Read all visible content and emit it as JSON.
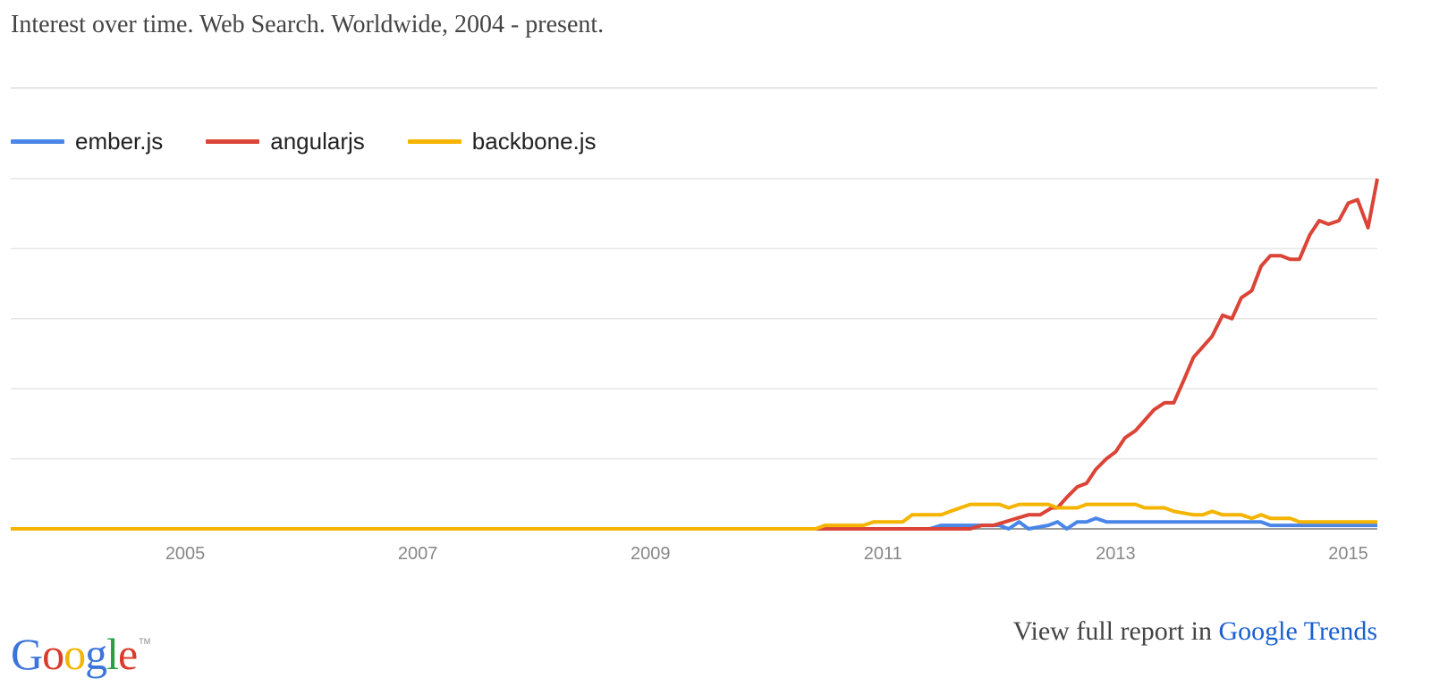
{
  "header": {
    "title": "Interest over time. Web Search. Worldwide, 2004 - present."
  },
  "footer": {
    "logo_letters": [
      {
        "ch": "G",
        "color": "#3b75d9"
      },
      {
        "ch": "o",
        "color": "#db3b2b"
      },
      {
        "ch": "o",
        "color": "#f2b500"
      },
      {
        "ch": "g",
        "color": "#3b75d9"
      },
      {
        "ch": "l",
        "color": "#2b9e45"
      },
      {
        "ch": "e",
        "color": "#db3b2b"
      }
    ],
    "logo_text": "Google",
    "logo_tm": "TM",
    "report_prefix": "View full report in",
    "report_link": "Google Trends"
  },
  "chart_data": {
    "type": "line",
    "title": "Interest over time. Web Search. Worldwide, 2004 - present.",
    "xlabel": "",
    "ylabel": "",
    "xlim": [
      2004.0,
      2015.75
    ],
    "ylim": [
      0,
      100
    ],
    "grid": true,
    "legend_position": "top-left",
    "x_ticks": [
      "2005",
      "2007",
      "2009",
      "2011",
      "2013",
      "2015"
    ],
    "series": [
      {
        "name": "ember.js",
        "color": "#4a86e8",
        "points": [
          [
            2004.0,
            0
          ],
          [
            2011.9,
            0
          ],
          [
            2012.0,
            1
          ],
          [
            2012.5,
            1
          ],
          [
            2012.58,
            0
          ],
          [
            2012.67,
            2
          ],
          [
            2012.75,
            0
          ],
          [
            2012.92,
            1
          ],
          [
            2013.0,
            2
          ],
          [
            2013.08,
            0
          ],
          [
            2013.17,
            2
          ],
          [
            2013.25,
            2
          ],
          [
            2013.33,
            3
          ],
          [
            2013.42,
            2
          ],
          [
            2014.0,
            2
          ],
          [
            2014.5,
            2
          ],
          [
            2014.75,
            2
          ],
          [
            2014.83,
            1
          ],
          [
            2015.75,
            1
          ]
        ]
      },
      {
        "name": "angularjs",
        "color": "#db4437",
        "points": [
          [
            2004.0,
            0
          ],
          [
            2012.25,
            0
          ],
          [
            2012.35,
            1
          ],
          [
            2012.45,
            1
          ],
          [
            2012.55,
            2
          ],
          [
            2012.65,
            3
          ],
          [
            2012.75,
            4
          ],
          [
            2012.85,
            4
          ],
          [
            2012.95,
            6
          ],
          [
            2013.0,
            6
          ],
          [
            2013.08,
            9
          ],
          [
            2013.17,
            12
          ],
          [
            2013.25,
            13
          ],
          [
            2013.33,
            17
          ],
          [
            2013.42,
            20
          ],
          [
            2013.5,
            22
          ],
          [
            2013.58,
            26
          ],
          [
            2013.67,
            28
          ],
          [
            2013.75,
            31
          ],
          [
            2013.83,
            34
          ],
          [
            2013.92,
            36
          ],
          [
            2014.0,
            36
          ],
          [
            2014.08,
            42
          ],
          [
            2014.17,
            49
          ],
          [
            2014.25,
            52
          ],
          [
            2014.33,
            55
          ],
          [
            2014.42,
            61
          ],
          [
            2014.5,
            60
          ],
          [
            2014.58,
            66
          ],
          [
            2014.67,
            68
          ],
          [
            2014.75,
            75
          ],
          [
            2014.83,
            78
          ],
          [
            2014.92,
            78
          ],
          [
            2015.0,
            77
          ],
          [
            2015.08,
            77
          ],
          [
            2015.17,
            84
          ],
          [
            2015.25,
            88
          ],
          [
            2015.33,
            87
          ],
          [
            2015.42,
            88
          ],
          [
            2015.5,
            93
          ],
          [
            2015.58,
            94
          ],
          [
            2015.67,
            86
          ],
          [
            2015.75,
            100
          ]
        ]
      },
      {
        "name": "backbone.js",
        "color": "#f4b400",
        "points": [
          [
            2004.0,
            0
          ],
          [
            2010.92,
            0
          ],
          [
            2011.0,
            1
          ],
          [
            2011.33,
            1
          ],
          [
            2011.42,
            2
          ],
          [
            2011.67,
            2
          ],
          [
            2011.75,
            4
          ],
          [
            2012.0,
            4
          ],
          [
            2012.08,
            5
          ],
          [
            2012.25,
            7
          ],
          [
            2012.5,
            7
          ],
          [
            2012.58,
            6
          ],
          [
            2012.67,
            7
          ],
          [
            2012.92,
            7
          ],
          [
            2013.0,
            6
          ],
          [
            2013.17,
            6
          ],
          [
            2013.25,
            7
          ],
          [
            2013.67,
            7
          ],
          [
            2013.75,
            6
          ],
          [
            2013.92,
            6
          ],
          [
            2014.0,
            5
          ],
          [
            2014.17,
            4
          ],
          [
            2014.25,
            4
          ],
          [
            2014.33,
            5
          ],
          [
            2014.42,
            4
          ],
          [
            2014.58,
            4
          ],
          [
            2014.67,
            3
          ],
          [
            2014.75,
            4
          ],
          [
            2014.83,
            3
          ],
          [
            2015.0,
            3
          ],
          [
            2015.08,
            2
          ],
          [
            2015.75,
            2
          ]
        ]
      }
    ]
  }
}
